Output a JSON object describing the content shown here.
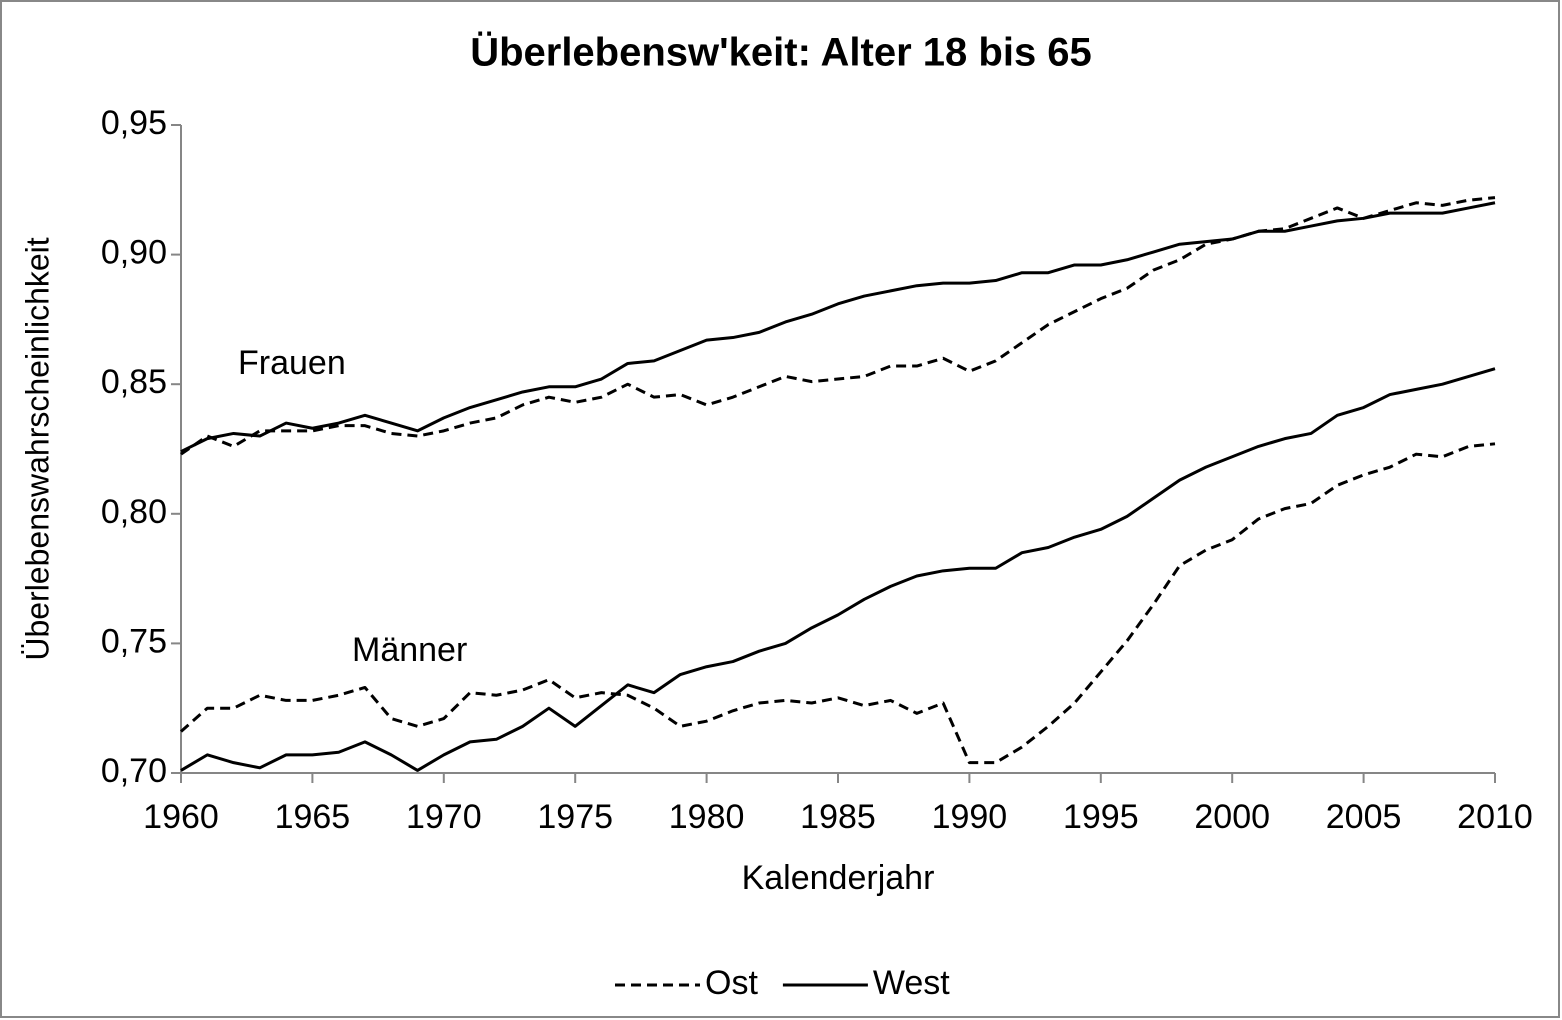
{
  "chart_data": {
    "type": "line",
    "title": "Überlebensw'keit: Alter 18 bis 65",
    "x_label": "Kalenderjahr",
    "y_label": "Überlebenswahrscheinlichkeit",
    "annotations": [
      "Frauen",
      "Männer"
    ],
    "x": [
      1960,
      1961,
      1962,
      1963,
      1964,
      1965,
      1966,
      1967,
      1968,
      1969,
      1970,
      1971,
      1972,
      1973,
      1974,
      1975,
      1976,
      1977,
      1978,
      1979,
      1980,
      1981,
      1982,
      1983,
      1984,
      1985,
      1986,
      1987,
      1988,
      1989,
      1990,
      1991,
      1992,
      1993,
      1994,
      1995,
      1996,
      1997,
      1998,
      1999,
      2000,
      2001,
      2002,
      2003,
      2004,
      2005,
      2006,
      2007,
      2008,
      2009,
      2010
    ],
    "series": [
      {
        "name": "Ost",
        "color": "#000000",
        "dashed": true,
        "values": [
          0.823,
          0.83,
          0.826,
          0.832,
          0.832,
          0.832,
          0.834,
          0.834,
          0.831,
          0.83,
          0.832,
          0.835,
          0.837,
          0.842,
          0.845,
          0.843,
          0.845,
          0.85,
          0.845,
          0.846,
          0.842,
          0.845,
          0.849,
          0.853,
          0.851,
          0.852,
          0.853,
          0.857,
          0.857,
          0.86,
          0.855,
          0.859,
          0.866,
          0.873,
          0.878,
          0.883,
          0.887,
          0.894,
          0.898,
          0.904,
          0.906,
          0.909,
          0.91,
          0.914,
          0.918,
          0.914,
          0.917,
          0.92,
          0.919,
          0.921,
          0.922
        ]
      },
      {
        "name": "West",
        "color": "#000000",
        "dashed": false,
        "values": [
          0.824,
          0.829,
          0.831,
          0.83,
          0.835,
          0.833,
          0.835,
          0.838,
          0.835,
          0.832,
          0.837,
          0.841,
          0.844,
          0.847,
          0.849,
          0.849,
          0.852,
          0.858,
          0.859,
          0.863,
          0.867,
          0.868,
          0.87,
          0.874,
          0.877,
          0.881,
          0.884,
          0.886,
          0.888,
          0.889,
          0.889,
          0.89,
          0.893,
          0.893,
          0.896,
          0.896,
          0.898,
          0.901,
          0.904,
          0.905,
          0.906,
          0.909,
          0.909,
          0.911,
          0.913,
          0.914,
          0.916,
          0.916,
          0.916,
          0.918,
          0.92
        ]
      },
      {
        "name": "Ost",
        "color": "#000000",
        "dashed": true,
        "values": [
          0.716,
          0.725,
          0.725,
          0.73,
          0.728,
          0.728,
          0.73,
          0.733,
          0.721,
          0.718,
          0.721,
          0.731,
          0.73,
          0.732,
          0.736,
          0.729,
          0.731,
          0.73,
          0.725,
          0.718,
          0.72,
          0.724,
          0.727,
          0.728,
          0.727,
          0.729,
          0.726,
          0.728,
          0.723,
          0.727,
          0.704,
          0.704,
          0.71,
          0.718,
          0.727,
          0.739,
          0.751,
          0.765,
          0.78,
          0.786,
          0.79,
          0.798,
          0.802,
          0.804,
          0.811,
          0.815,
          0.818,
          0.823,
          0.822,
          0.826,
          0.827
        ]
      },
      {
        "name": "West",
        "color": "#000000",
        "dashed": false,
        "values": [
          0.701,
          0.707,
          0.704,
          0.702,
          0.707,
          0.707,
          0.708,
          0.712,
          0.707,
          0.701,
          0.707,
          0.712,
          0.713,
          0.718,
          0.725,
          0.718,
          0.726,
          0.734,
          0.731,
          0.738,
          0.741,
          0.743,
          0.747,
          0.75,
          0.756,
          0.761,
          0.767,
          0.772,
          0.776,
          0.778,
          0.779,
          0.779,
          0.785,
          0.787,
          0.791,
          0.794,
          0.799,
          0.806,
          0.813,
          0.818,
          0.822,
          0.826,
          0.829,
          0.831,
          0.838,
          0.841,
          0.846,
          0.848,
          0.85,
          0.853,
          0.856
        ]
      }
    ],
    "xlim": [
      1960,
      2010
    ],
    "xticks": [
      1960,
      1965,
      1970,
      1975,
      1980,
      1985,
      1990,
      1995,
      2000,
      2005,
      2010
    ],
    "ylim": [
      0.7,
      0.95
    ],
    "yticks": [
      {
        "value": 0.7,
        "label": "0,70"
      },
      {
        "value": 0.75,
        "label": "0,75"
      },
      {
        "value": 0.8,
        "label": "0,80"
      },
      {
        "value": 0.85,
        "label": "0,85"
      },
      {
        "value": 0.9,
        "label": "0,90"
      },
      {
        "value": 0.95,
        "label": "0,95"
      }
    ],
    "grid": false,
    "legend": "bottom"
  }
}
